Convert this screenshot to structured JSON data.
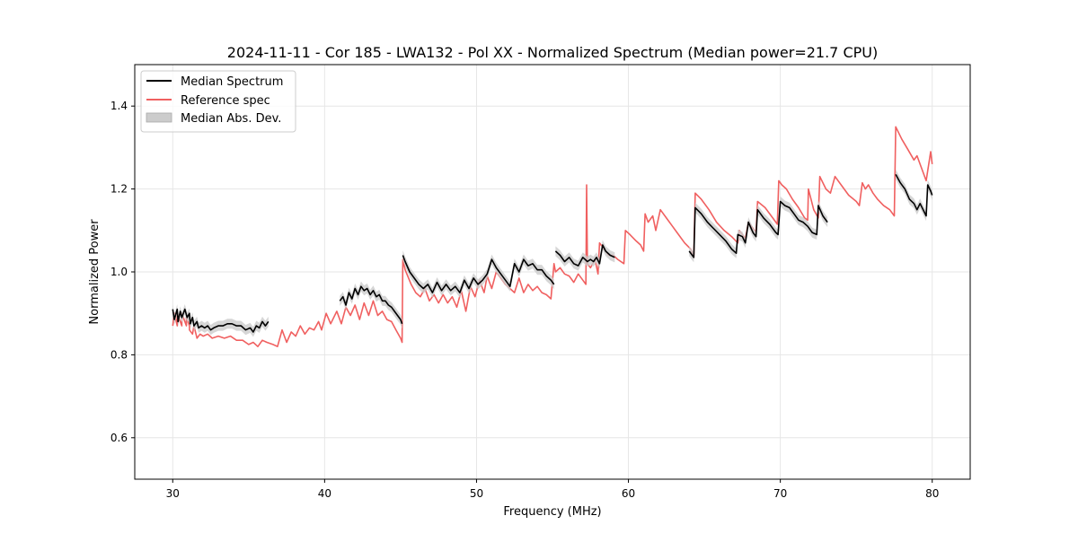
{
  "chart_data": {
    "type": "line",
    "title": "2024-11-11 - Cor 185 - LWA132 - Pol XX - Normalized Spectrum (Median power=21.7 CPU)",
    "xlabel": "Frequency (MHz)",
    "ylabel": "Normalized Power",
    "xlim": [
      27.5,
      82.5
    ],
    "ylim": [
      0.5,
      1.5
    ],
    "xticks": [
      30,
      40,
      50,
      60,
      70,
      80
    ],
    "yticks": [
      0.6,
      0.8,
      1.0,
      1.2,
      1.4
    ],
    "xtick_labels": [
      "30",
      "40",
      "50",
      "60",
      "70",
      "80"
    ],
    "ytick_labels": [
      "0.6",
      "0.8",
      "1.0",
      "1.2",
      "1.4"
    ],
    "grid": true,
    "legend": {
      "position": "top-left",
      "entries": [
        {
          "label": "Median Spectrum",
          "kind": "line",
          "color": "#000000"
        },
        {
          "label": "Reference spec",
          "kind": "line",
          "color": "#f06060"
        },
        {
          "label": "Median Abs. Dev.",
          "kind": "patch",
          "color": "#cccccc"
        }
      ]
    },
    "series": [
      {
        "name": "Reference spec",
        "color": "#f06060",
        "x": [
          30.0,
          30.1,
          30.3,
          30.3,
          30.6,
          30.6,
          30.9,
          30.9,
          31.1,
          31.1,
          31.3,
          31.4,
          31.6,
          31.8,
          32.0,
          32.3,
          32.6,
          33.0,
          33.4,
          33.8,
          34.2,
          34.6,
          35.0,
          35.3,
          35.6,
          35.9,
          36.2,
          36.6,
          36.9,
          37.2,
          37.5,
          37.8,
          38.1,
          38.4,
          38.7,
          39.0,
          39.3,
          39.6,
          39.8,
          40.1,
          40.4,
          40.8,
          41.1,
          41.4,
          41.7,
          42.0,
          42.3,
          42.6,
          42.9,
          43.2,
          43.5,
          43.8,
          44.1,
          44.4,
          44.7,
          45.0,
          45.1,
          45.15,
          45.3,
          45.7,
          46.0,
          46.3,
          46.6,
          46.9,
          47.2,
          47.5,
          47.8,
          48.1,
          48.4,
          48.7,
          49.0,
          49.3,
          49.6,
          49.9,
          50.2,
          50.5,
          50.7,
          51.0,
          51.3,
          51.6,
          51.9,
          52.2,
          52.5,
          52.8,
          53.1,
          53.4,
          53.7,
          54.0,
          54.3,
          54.6,
          54.9,
          55.1,
          55.2,
          55.5,
          55.8,
          56.1,
          56.4,
          56.7,
          57.0,
          57.2,
          57.25,
          57.3,
          57.5,
          57.8,
          58.0,
          58.1,
          58.4,
          58.7,
          59.0,
          59.3,
          59.7,
          59.8,
          60.1,
          60.5,
          60.8,
          61.0,
          61.1,
          61.3,
          61.6,
          61.8,
          62.1,
          62.5,
          62.9,
          63.3,
          63.7,
          64.1,
          64.3,
          64.4,
          64.8,
          65.3,
          65.8,
          66.3,
          66.8,
          67.2,
          67.3,
          67.7,
          67.9,
          68.1,
          68.4,
          68.5,
          69.0,
          69.5,
          69.8,
          69.9,
          70.1,
          70.4,
          70.8,
          71.2,
          71.6,
          71.8,
          71.85,
          72.2,
          72.5,
          72.6,
          73.0,
          73.3,
          73.6,
          74.0,
          74.5,
          75.0,
          75.2,
          75.4,
          75.6,
          75.8,
          76.1,
          76.4,
          76.8,
          77.2,
          77.5,
          77.6,
          78.0,
          78.4,
          78.8,
          79.0,
          79.3,
          79.6,
          79.9,
          80.0
        ],
        "y": [
          0.87,
          0.9,
          0.87,
          0.9,
          0.87,
          0.9,
          0.87,
          0.89,
          0.87,
          0.86,
          0.85,
          0.87,
          0.84,
          0.85,
          0.845,
          0.85,
          0.84,
          0.845,
          0.84,
          0.845,
          0.835,
          0.835,
          0.825,
          0.83,
          0.82,
          0.835,
          0.83,
          0.825,
          0.82,
          0.86,
          0.83,
          0.855,
          0.845,
          0.87,
          0.85,
          0.865,
          0.86,
          0.88,
          0.86,
          0.9,
          0.875,
          0.905,
          0.875,
          0.915,
          0.895,
          0.92,
          0.885,
          0.925,
          0.895,
          0.93,
          0.895,
          0.905,
          0.885,
          0.88,
          0.86,
          0.84,
          0.83,
          1.03,
          1.005,
          0.97,
          0.95,
          0.94,
          0.96,
          0.93,
          0.945,
          0.925,
          0.945,
          0.925,
          0.94,
          0.915,
          0.955,
          0.905,
          0.965,
          0.94,
          0.98,
          0.95,
          0.99,
          0.96,
          1.0,
          0.985,
          0.97,
          0.96,
          0.95,
          0.985,
          0.95,
          0.97,
          0.955,
          0.965,
          0.95,
          0.945,
          0.935,
          1.02,
          1.0,
          1.01,
          0.995,
          0.99,
          0.975,
          0.995,
          0.98,
          0.97,
          1.21,
          1.02,
          1.01,
          1.03,
          0.995,
          1.07,
          1.055,
          1.04,
          1.04,
          1.03,
          1.02,
          1.1,
          1.09,
          1.075,
          1.065,
          1.05,
          1.14,
          1.12,
          1.135,
          1.1,
          1.15,
          1.13,
          1.11,
          1.09,
          1.07,
          1.055,
          1.035,
          1.19,
          1.175,
          1.15,
          1.12,
          1.1,
          1.085,
          1.07,
          1.1,
          1.08,
          1.12,
          1.11,
          1.095,
          1.17,
          1.155,
          1.13,
          1.115,
          1.22,
          1.21,
          1.2,
          1.175,
          1.155,
          1.13,
          1.125,
          1.2,
          1.15,
          1.13,
          1.23,
          1.2,
          1.19,
          1.23,
          1.21,
          1.185,
          1.17,
          1.16,
          1.215,
          1.2,
          1.21,
          1.19,
          1.175,
          1.16,
          1.15,
          1.135,
          1.35,
          1.32,
          1.295,
          1.27,
          1.28,
          1.25,
          1.22,
          1.29,
          1.26
        ]
      },
      {
        "name": "Median Spectrum",
        "color": "#000000",
        "segments": [
          {
            "x": [
              30.0,
              30.1,
              30.3,
              30.35,
              30.5,
              30.6,
              30.8,
              30.95,
              31.1,
              31.15,
              31.3,
              31.4,
              31.6,
              31.7,
              31.9,
              32.1,
              32.3,
              32.5,
              32.7,
              33.0,
              33.3,
              33.6,
              33.9,
              34.2,
              34.5,
              34.8,
              35.1,
              35.3,
              35.5,
              35.7,
              35.9,
              36.1,
              36.3
            ],
            "y": [
              0.91,
              0.885,
              0.91,
              0.88,
              0.905,
              0.89,
              0.91,
              0.89,
              0.9,
              0.875,
              0.89,
              0.87,
              0.88,
              0.865,
              0.87,
              0.865,
              0.87,
              0.86,
              0.865,
              0.87,
              0.87,
              0.875,
              0.875,
              0.87,
              0.87,
              0.86,
              0.865,
              0.855,
              0.87,
              0.865,
              0.88,
              0.87,
              0.88
            ]
          },
          {
            "x": [
              41.0,
              41.2,
              41.4,
              41.6,
              41.8,
              42.0,
              42.2,
              42.4,
              42.6,
              42.8,
              43.0,
              43.2,
              43.4,
              43.6,
              43.8,
              44.0,
              44.2,
              44.4,
              44.6,
              44.8,
              45.0,
              45.1
            ],
            "y": [
              0.93,
              0.94,
              0.92,
              0.95,
              0.935,
              0.96,
              0.945,
              0.965,
              0.955,
              0.96,
              0.945,
              0.955,
              0.94,
              0.945,
              0.93,
              0.93,
              0.92,
              0.915,
              0.905,
              0.895,
              0.885,
              0.875
            ]
          },
          {
            "x": [
              45.15,
              45.3,
              45.6,
              45.9,
              46.2,
              46.5,
              46.8,
              47.1,
              47.4,
              47.7,
              48.0,
              48.3,
              48.6,
              48.9,
              49.2,
              49.5,
              49.8,
              50.1,
              50.4,
              50.7,
              51.0,
              51.3,
              51.6,
              51.9,
              52.2,
              52.5,
              52.8,
              53.1,
              53.4,
              53.7,
              54.0,
              54.3,
              54.6,
              54.9,
              55.1
            ],
            "y": [
              1.04,
              1.025,
              1.0,
              0.985,
              0.97,
              0.96,
              0.97,
              0.95,
              0.975,
              0.955,
              0.97,
              0.955,
              0.965,
              0.95,
              0.98,
              0.96,
              0.985,
              0.97,
              0.98,
              0.995,
              1.03,
              1.01,
              0.995,
              0.98,
              0.965,
              1.02,
              1.0,
              1.03,
              1.015,
              1.02,
              1.005,
              1.005,
              0.99,
              0.98,
              0.97
            ]
          },
          {
            "x": [
              55.2,
              55.5,
              55.8,
              56.1,
              56.4,
              56.7,
              57.0,
              57.3,
              57.5,
              57.7,
              57.9,
              58.1,
              58.3,
              58.5,
              58.8,
              59.1
            ],
            "y": [
              1.05,
              1.04,
              1.025,
              1.035,
              1.02,
              1.015,
              1.035,
              1.025,
              1.03,
              1.025,
              1.035,
              1.02,
              1.065,
              1.05,
              1.04,
              1.035
            ]
          },
          {
            "x": [
              64.0,
              64.2,
              64.3,
              64.4,
              64.8,
              65.2,
              65.6,
              66.0,
              66.4,
              66.8,
              67.1,
              67.2,
              67.5,
              67.7,
              67.9,
              68.2,
              68.4,
              68.5,
              68.9,
              69.3,
              69.7,
              69.85,
              70.0,
              70.3,
              70.6,
              70.9,
              71.2,
              71.5,
              71.8,
              72.1,
              72.4,
              72.5,
              72.8,
              73.1
            ],
            "y": [
              1.05,
              1.04,
              1.035,
              1.155,
              1.14,
              1.12,
              1.105,
              1.09,
              1.075,
              1.055,
              1.045,
              1.09,
              1.085,
              1.07,
              1.12,
              1.095,
              1.085,
              1.15,
              1.13,
              1.115,
              1.095,
              1.09,
              1.17,
              1.16,
              1.155,
              1.14,
              1.125,
              1.12,
              1.11,
              1.095,
              1.09,
              1.16,
              1.135,
              1.12
            ]
          },
          {
            "x": [
              77.6,
              77.9,
              78.2,
              78.5,
              78.8,
              79.0,
              79.2,
              79.4,
              79.6,
              79.7,
              79.9,
              80.0
            ],
            "y": [
              1.235,
              1.215,
              1.2,
              1.175,
              1.165,
              1.15,
              1.165,
              1.15,
              1.135,
              1.21,
              1.195,
              1.185
            ]
          }
        ]
      }
    ],
    "mad_band_halfwidth": 0.012
  }
}
